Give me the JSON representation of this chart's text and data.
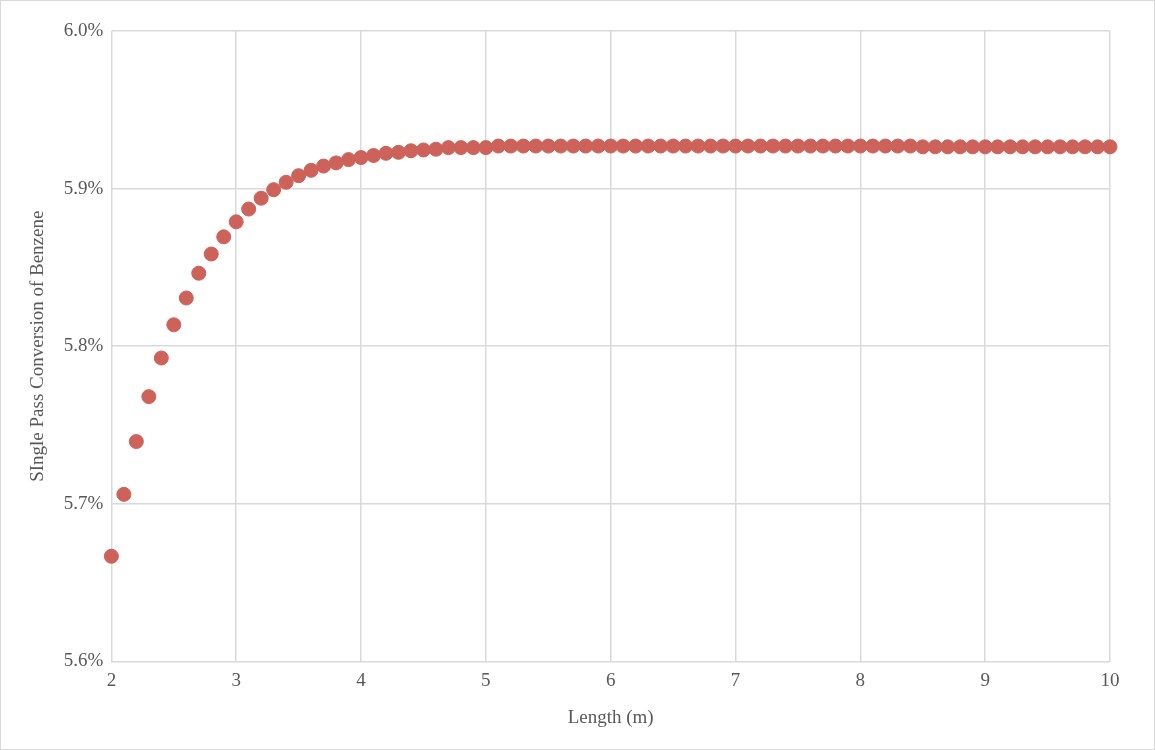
{
  "chart_data": {
    "type": "scatter",
    "xlabel": "Length (m)",
    "ylabel": "SIngle Pass Conversion of Benzene",
    "x": [
      2,
      2.1,
      2.2,
      2.3,
      2.4,
      2.5,
      2.6,
      2.7,
      2.8,
      2.9,
      3,
      3.1,
      3.2,
      3.3,
      3.4,
      3.5,
      3.6,
      3.7,
      3.8,
      3.9,
      4,
      4.1,
      4.2,
      4.3,
      4.4,
      4.5,
      4.6,
      4.7,
      4.8,
      4.9,
      5,
      5.1,
      5.2,
      5.3,
      5.4,
      5.5,
      5.6,
      5.7,
      5.8,
      5.9,
      6,
      6.1,
      6.2,
      6.3,
      6.4,
      6.5,
      6.6,
      6.7,
      6.8,
      6.9,
      7,
      7.1,
      7.2,
      7.3,
      7.4,
      7.5,
      7.6,
      7.7,
      7.8,
      7.9,
      8,
      8.1,
      8.2,
      8.3,
      8.4,
      8.5,
      8.6,
      8.7,
      8.8,
      8.9,
      9,
      9.1,
      9.2,
      9.3,
      9.4,
      9.5,
      9.6,
      9.7,
      9.8,
      9.9,
      10
    ],
    "series": [
      {
        "color": "#cd625a",
        "values": [
          5.6667,
          5.706,
          5.7395,
          5.768,
          5.7925,
          5.8136,
          5.8306,
          5.8463,
          5.8585,
          5.8694,
          5.8789,
          5.887,
          5.8939,
          5.8993,
          5.904,
          5.9082,
          5.9116,
          5.9143,
          5.9163,
          5.9184,
          5.9197,
          5.921,
          5.9224,
          5.923,
          5.924,
          5.9245,
          5.925,
          5.926,
          5.926,
          5.926,
          5.926,
          5.927,
          5.927,
          5.927,
          5.927,
          5.927,
          5.927,
          5.927,
          5.927,
          5.927,
          5.927,
          5.927,
          5.927,
          5.927,
          5.927,
          5.927,
          5.927,
          5.927,
          5.927,
          5.927,
          5.927,
          5.927,
          5.927,
          5.927,
          5.927,
          5.927,
          5.927,
          5.927,
          5.927,
          5.927,
          5.927,
          5.927,
          5.927,
          5.927,
          5.927,
          5.9265,
          5.9265,
          5.9265,
          5.9265,
          5.9265,
          5.9265,
          5.9265,
          5.9265,
          5.9265,
          5.9265,
          5.9265,
          5.9265,
          5.9265,
          5.9265,
          5.9265,
          5.9265
        ]
      }
    ],
    "xlim": [
      2,
      10
    ],
    "xticks": [
      2,
      3,
      4,
      5,
      6,
      7,
      8,
      9,
      10
    ],
    "ylim": [
      5.6,
      6.0
    ],
    "yticks": [
      {
        "value": 5.6,
        "label": "5.6%"
      },
      {
        "value": 5.7,
        "label": "5.7%"
      },
      {
        "value": 5.8,
        "label": "5.8%"
      },
      {
        "value": 5.9,
        "label": "5.9%"
      },
      {
        "value": 6.0,
        "label": "6.0%"
      }
    ],
    "grid": true,
    "legend": false,
    "marker": "circle"
  }
}
